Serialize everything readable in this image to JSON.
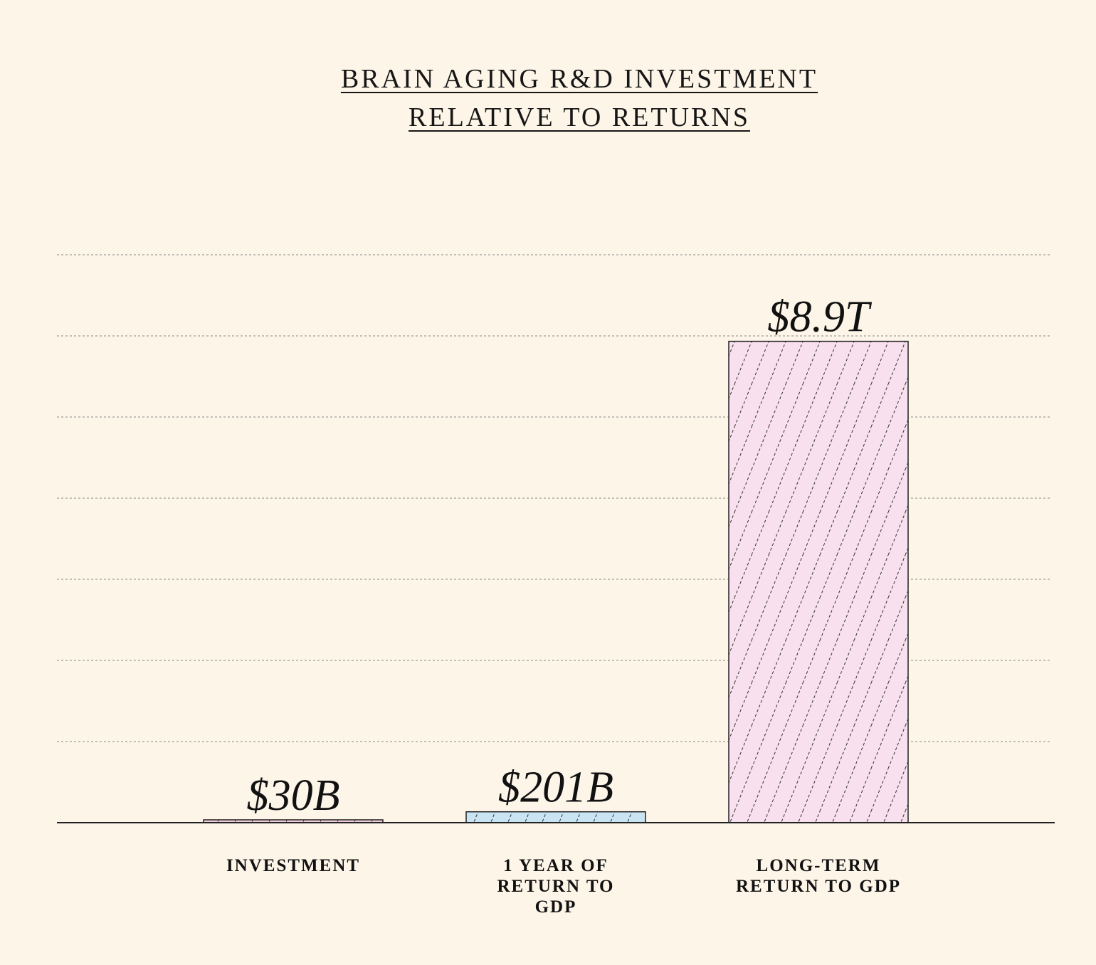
{
  "chart_data": {
    "type": "bar",
    "title_lines": [
      "BRAIN AGING R&D INVESTMENT",
      "RELATIVE TO RETURNS"
    ],
    "categories": [
      [
        "INVESTMENT"
      ],
      [
        "1 YEAR OF",
        "RETURN TO",
        "GDP"
      ],
      [
        "LONG-TERM",
        "RETURN TO GDP"
      ]
    ],
    "values": [
      30,
      201,
      8900
    ],
    "value_unit": "billion USD",
    "value_labels": [
      "$30B",
      "$201B",
      "$8.9T"
    ],
    "ylim": [
      0,
      10500
    ],
    "grid": true,
    "bar_colors": [
      "#f2cdd9",
      "#c9e4f3",
      "#f8e0ee"
    ],
    "bar_pattern": "diagonal-hatch"
  }
}
